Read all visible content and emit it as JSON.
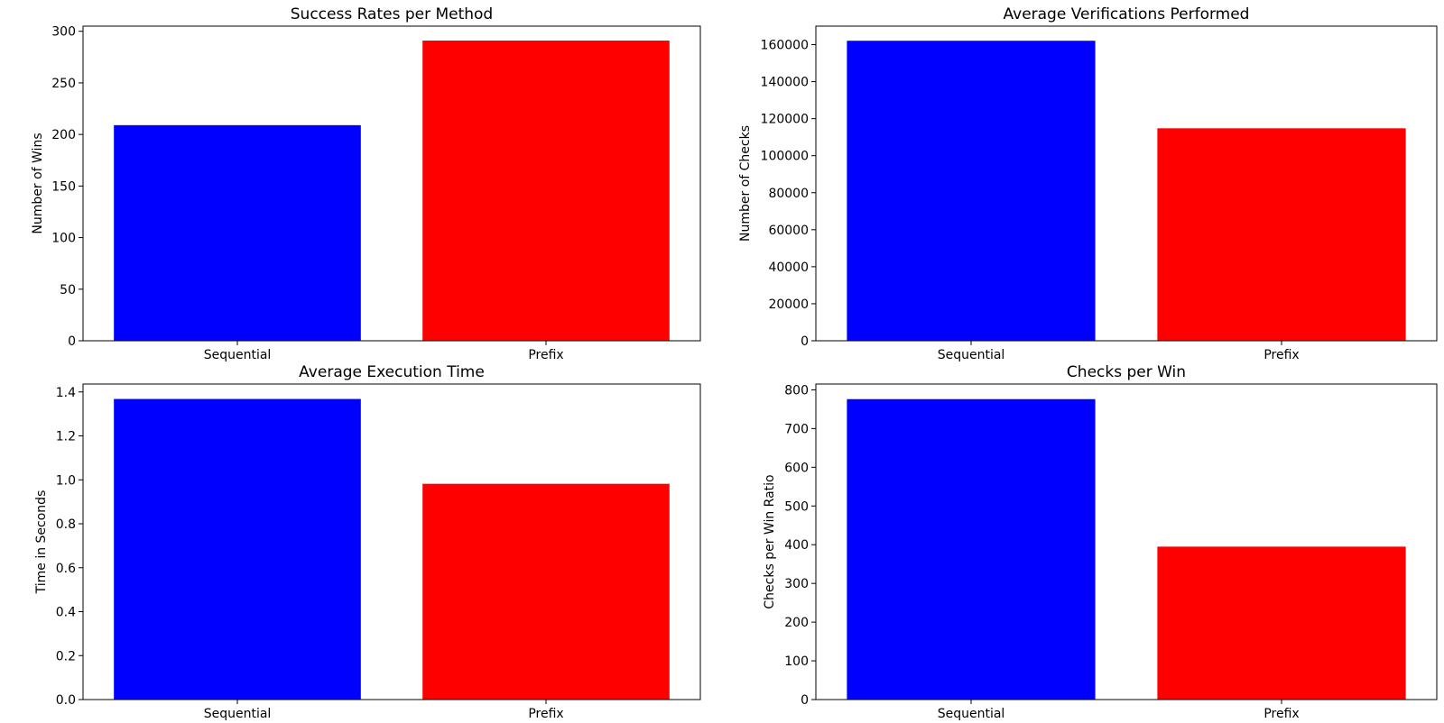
{
  "chart_data": [
    {
      "type": "bar",
      "title": "Success Rates per Method",
      "xlabel": "",
      "ylabel": "Number of Wins",
      "categories": [
        "Sequential",
        "Prefix"
      ],
      "values": [
        209,
        291
      ],
      "colors": [
        "#0000ff",
        "#ff0000"
      ],
      "ylim": [
        0,
        305
      ],
      "yticks": [
        0,
        50,
        100,
        150,
        200,
        250,
        300
      ],
      "ytick_labels": [
        "0",
        "50",
        "100",
        "150",
        "200",
        "250",
        "300"
      ],
      "grid": false,
      "legend": "none"
    },
    {
      "type": "bar",
      "title": "Average Verifications Performed",
      "xlabel": "",
      "ylabel": "Number of Checks",
      "categories": [
        "Sequential",
        "Prefix"
      ],
      "values": [
        162100,
        114800
      ],
      "colors": [
        "#0000ff",
        "#ff0000"
      ],
      "ylim": [
        0,
        170000
      ],
      "yticks": [
        0,
        20000,
        40000,
        60000,
        80000,
        100000,
        120000,
        140000,
        160000
      ],
      "ytick_labels": [
        "0",
        "20000",
        "40000",
        "60000",
        "80000",
        "100000",
        "120000",
        "140000",
        "160000"
      ],
      "grid": false,
      "legend": "none"
    },
    {
      "type": "bar",
      "title": "Average Execution Time",
      "xlabel": "",
      "ylabel": "Time in Seconds",
      "categories": [
        "Sequential",
        "Prefix"
      ],
      "values": [
        1.368,
        0.982
      ],
      "colors": [
        "#0000ff",
        "#ff0000"
      ],
      "ylim": [
        0,
        1.436
      ],
      "yticks": [
        0,
        0.2,
        0.4,
        0.6,
        0.8,
        1.0,
        1.2,
        1.4
      ],
      "ytick_labels": [
        "0.0",
        "0.2",
        "0.4",
        "0.6",
        "0.8",
        "1.0",
        "1.2",
        "1.4"
      ],
      "grid": false,
      "legend": "none"
    },
    {
      "type": "bar",
      "title": "Checks per Win",
      "xlabel": "",
      "ylabel": "Checks per Win Ratio",
      "categories": [
        "Sequential",
        "Prefix"
      ],
      "values": [
        776,
        395
      ],
      "colors": [
        "#0000ff",
        "#ff0000"
      ],
      "ylim": [
        0,
        815
      ],
      "yticks": [
        0,
        100,
        200,
        300,
        400,
        500,
        600,
        700,
        800
      ],
      "ytick_labels": [
        "0",
        "100",
        "200",
        "300",
        "400",
        "500",
        "600",
        "700",
        "800"
      ],
      "grid": false,
      "legend": "none"
    }
  ]
}
